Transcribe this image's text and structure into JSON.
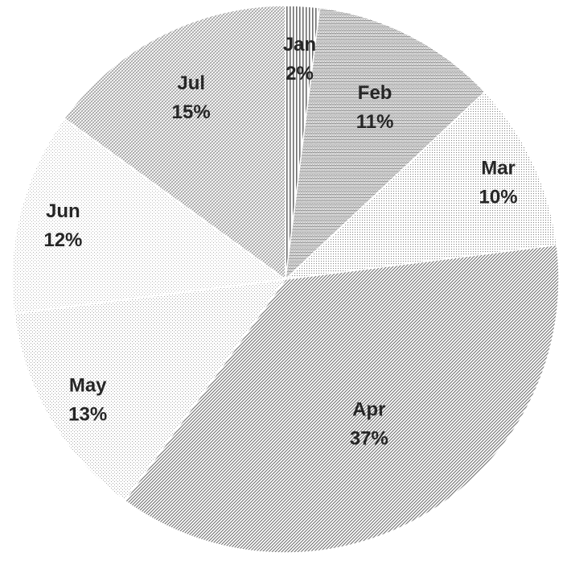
{
  "chart_data": {
    "type": "pie",
    "title": "",
    "start_angle_deg": 0,
    "direction": "clockwise",
    "legend": "none",
    "categories": [
      "Jan",
      "Feb",
      "Mar",
      "Apr",
      "May",
      "Jun",
      "Jul"
    ],
    "values": [
      2,
      11,
      10,
      37,
      13,
      12,
      15
    ],
    "data_labels": [
      "2%",
      "11%",
      "10%",
      "37%",
      "13%",
      "12%",
      "15%"
    ],
    "patterns": [
      "vertical-lines",
      "fine-waves",
      "fine-dots",
      "diagonal-lines",
      "light-dots",
      "light-dots-2",
      "cross-hatch"
    ]
  }
}
